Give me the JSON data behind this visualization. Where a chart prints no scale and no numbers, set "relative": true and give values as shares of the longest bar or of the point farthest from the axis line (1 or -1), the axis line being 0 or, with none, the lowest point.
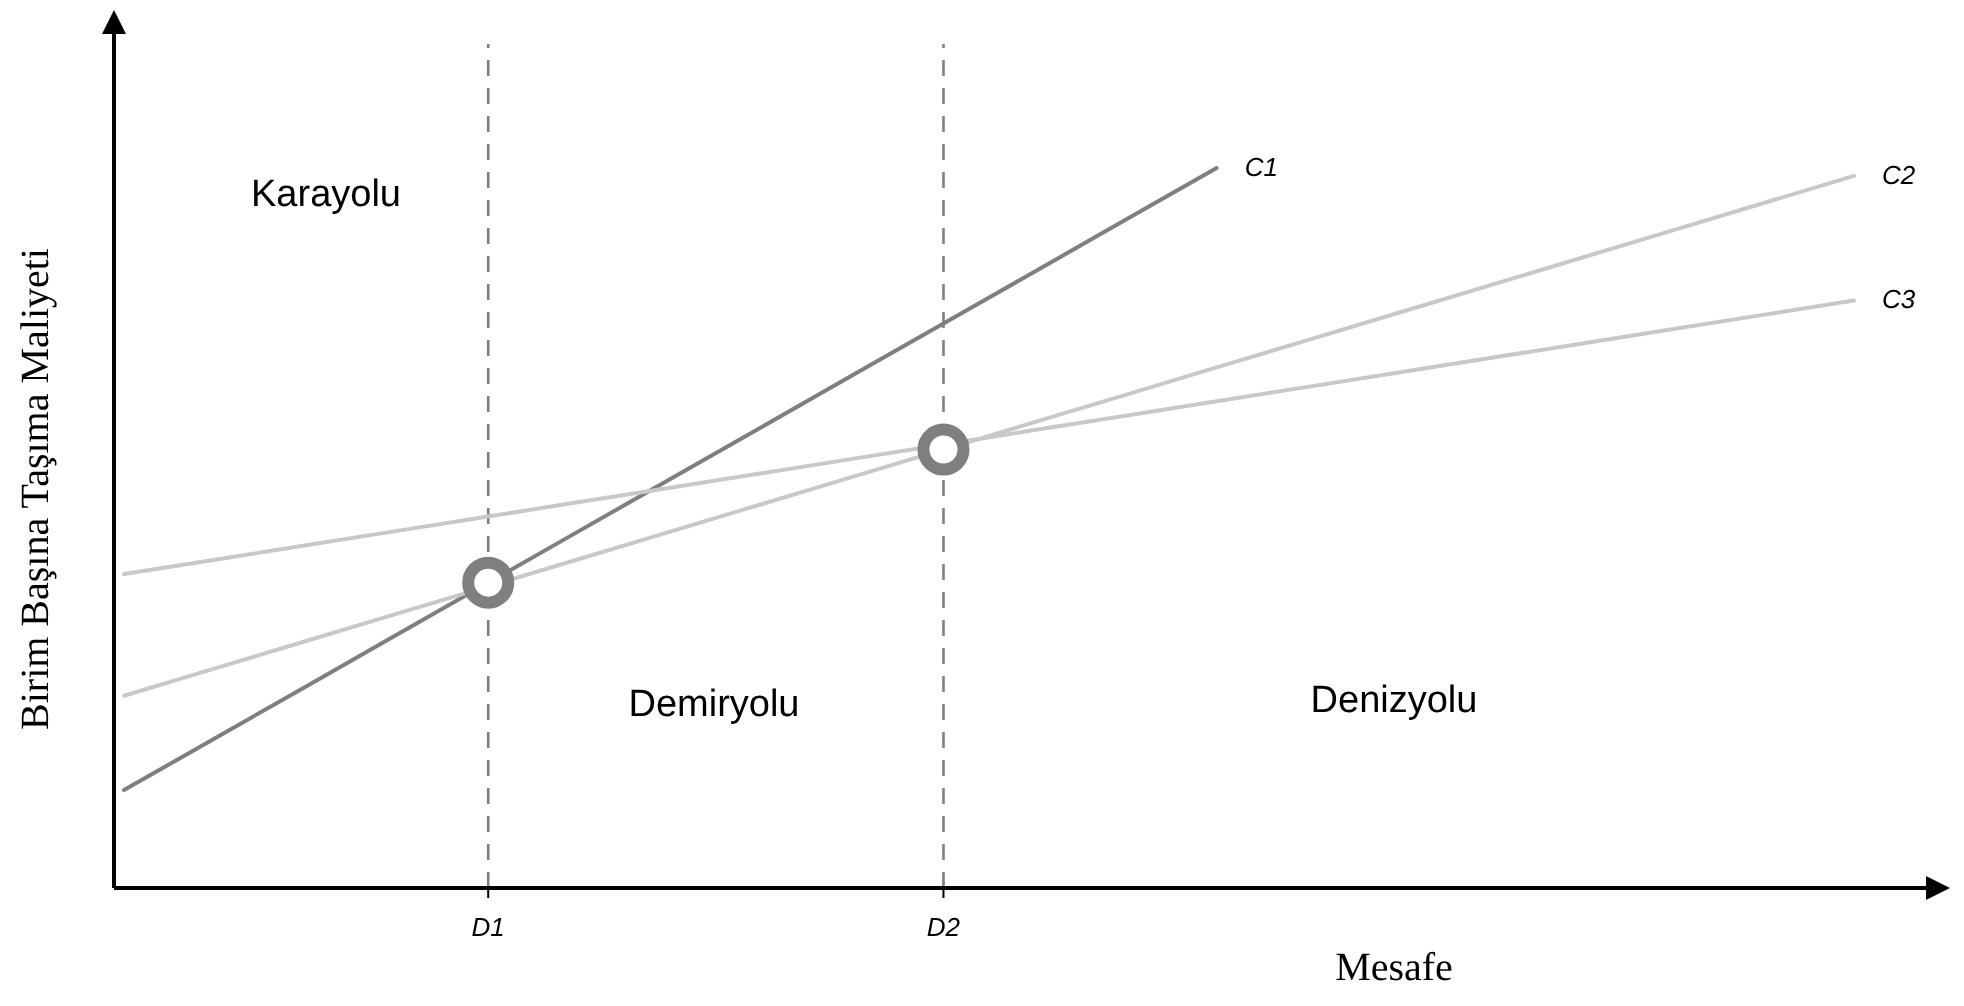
{
  "chart_data": {
    "type": "line",
    "xlabel": "Mesafe",
    "ylabel": "Birim Başına Taşıma Maliyeti",
    "relative": true,
    "tick_labels": "x",
    "grid": false,
    "categories": [
      null,
      null,
      null,
      null,
      "D1",
      null,
      null,
      null,
      null,
      "D2",
      null,
      null,
      null,
      null,
      null,
      null,
      null,
      null,
      null,
      null
    ],
    "series": [
      {
        "name": "C1",
        "color": "#7f7f7f",
        "values": [
          0.136,
          0.208,
          0.28,
          0.352,
          null,
          0.496,
          0.568,
          0.64,
          0.712,
          0.784,
          0.856,
          0.928,
          1,
          null,
          null,
          null,
          null,
          null,
          null,
          null
        ]
      },
      {
        "name": "C2",
        "color": "#c8c8c8",
        "values": [
          0.267,
          0.305,
          0.343,
          0.381,
          0.419,
          0.457,
          0.495,
          0.533,
          0.571,
          null,
          0.647,
          0.685,
          0.723,
          0.761,
          0.799,
          0.837,
          0.875,
          0.913,
          0.951,
          0.989
        ]
      },
      {
        "name": "C3",
        "color": "#c8c8c8",
        "values": [
          0.436,
          0.456,
          0.476,
          0.496,
          0.516,
          0.536,
          0.556,
          0.576,
          0.596,
          0.616,
          0.636,
          0.656,
          0.676,
          0.696,
          0.716,
          0.736,
          0.756,
          0.776,
          0.796,
          0.816
        ]
      },
      {
        "type": "scatter",
        "marker": "circle",
        "color": "#7f7f7f",
        "values": [
          null,
          null,
          null,
          null,
          0.424,
          null,
          null,
          null,
          null,
          0.609,
          null,
          null,
          null,
          null,
          null,
          null,
          null,
          null,
          null,
          null
        ]
      }
    ],
    "ref_lines": [
      {
        "axis": "x",
        "value": "D1",
        "line_style": "dashed",
        "color": "#7f7f7f"
      },
      {
        "axis": "x",
        "value": "D2",
        "line_style": "dashed",
        "color": "#7f7f7f"
      }
    ],
    "annotations": [
      "Karayolu",
      "Demiryolu",
      "Denizyolu"
    ]
  }
}
